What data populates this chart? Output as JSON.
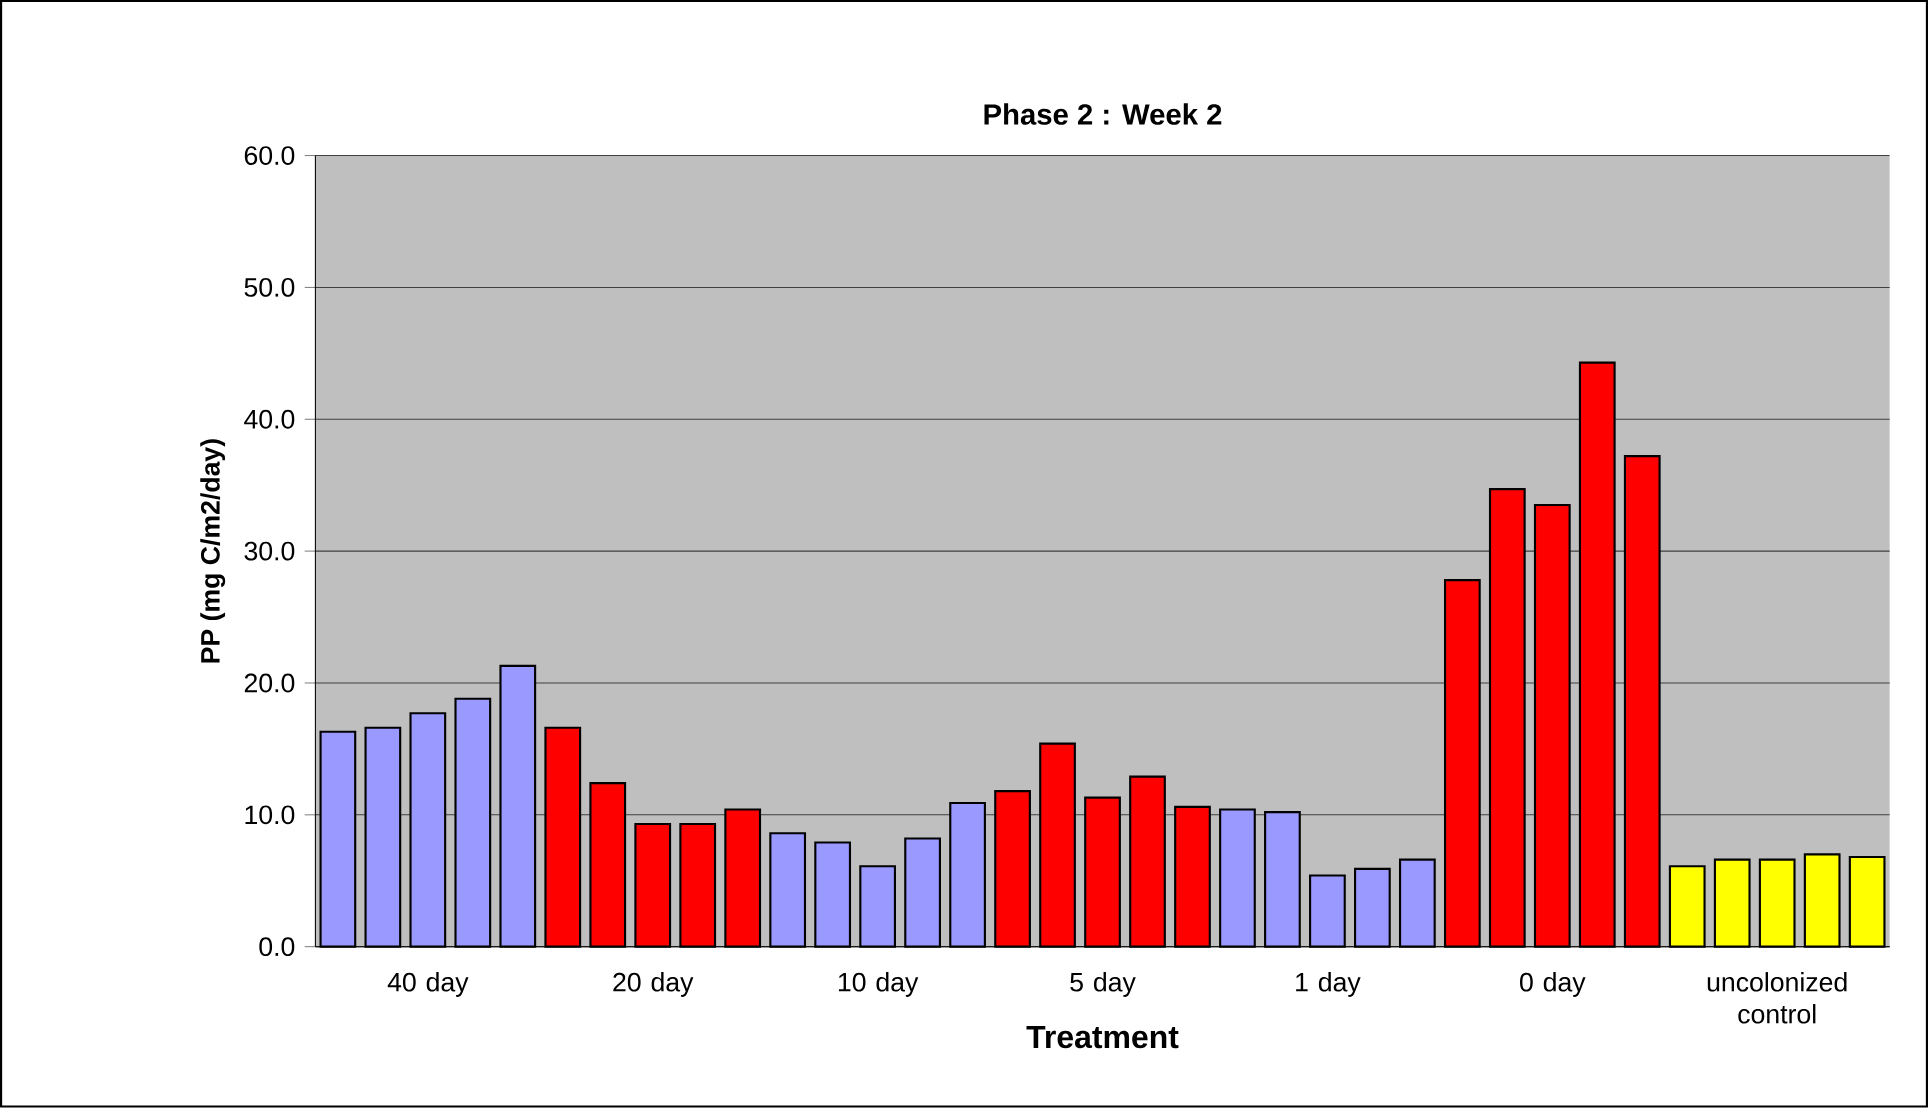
{
  "chart_data": {
    "type": "bar",
    "title": "Phase 2 : Week 2",
    "xlabel": "Treatment",
    "ylabel": "PP  (mg C/m2/day)",
    "categories": [
      null,
      null,
      "40 day",
      null,
      null,
      null,
      null,
      "20 day",
      null,
      null,
      null,
      null,
      "10 day",
      null,
      null,
      null,
      null,
      "5 day",
      null,
      null,
      null,
      null,
      "1 day",
      null,
      null,
      null,
      null,
      "0 day",
      null,
      null,
      null,
      null,
      "uncolonized control",
      null,
      null
    ],
    "values": [
      16.3,
      16.6,
      17.7,
      18.8,
      21.3,
      16.6,
      12.4,
      9.3,
      9.3,
      10.4,
      8.6,
      7.9,
      6.1,
      8.2,
      10.9,
      11.8,
      15.4,
      11.3,
      12.9,
      10.6,
      10.4,
      10.2,
      5.4,
      5.9,
      6.6,
      27.8,
      34.7,
      33.5,
      44.3,
      37.2,
      6.1,
      6.6,
      6.6,
      7.0,
      6.8
    ],
    "colors": [
      "#9999ff",
      "#9999ff",
      "#9999ff",
      "#9999ff",
      "#9999ff",
      "#ff0000",
      "#ff0000",
      "#ff0000",
      "#ff0000",
      "#ff0000",
      "#9999ff",
      "#9999ff",
      "#9999ff",
      "#9999ff",
      "#9999ff",
      "#ff0000",
      "#ff0000",
      "#ff0000",
      "#ff0000",
      "#ff0000",
      "#9999ff",
      "#9999ff",
      "#9999ff",
      "#9999ff",
      "#9999ff",
      "#ff0000",
      "#ff0000",
      "#ff0000",
      "#ff0000",
      "#ff0000",
      "#ffff00",
      "#ffff00",
      "#ffff00",
      "#ffff00",
      "#ffff00"
    ],
    "ylim": [
      0,
      60
    ],
    "yticks": [
      {
        "value": 0,
        "label": "0.0"
      },
      {
        "value": 10,
        "label": "10.0"
      },
      {
        "value": 20,
        "label": "20.0"
      },
      {
        "value": 30,
        "label": "30.0"
      },
      {
        "value": 40,
        "label": "40.0"
      },
      {
        "value": 50,
        "label": "50.0"
      },
      {
        "value": 60,
        "label": "60.0"
      }
    ],
    "grid": "y"
  }
}
